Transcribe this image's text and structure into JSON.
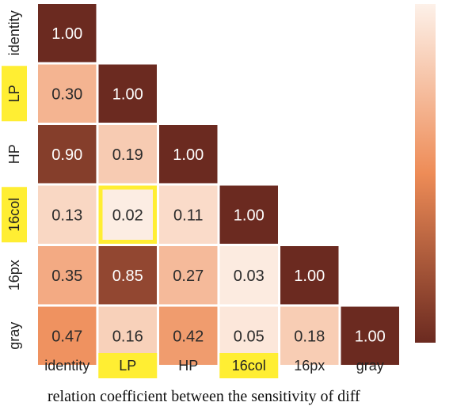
{
  "chart_data": {
    "type": "heatmap",
    "title": "",
    "xlabel": "",
    "ylabel": "",
    "labels": [
      "identity",
      "LP",
      "HP",
      "16col",
      "16px",
      "gray"
    ],
    "highlighted_labels": [
      "LP",
      "16col"
    ],
    "highlighted_cell": {
      "row": "16col",
      "col": "LP"
    },
    "matrix": [
      [
        1.0,
        null,
        null,
        null,
        null,
        null
      ],
      [
        0.3,
        1.0,
        null,
        null,
        null,
        null
      ],
      [
        0.9,
        0.19,
        1.0,
        null,
        null,
        null
      ],
      [
        0.13,
        0.02,
        0.11,
        1.0,
        null,
        null
      ],
      [
        0.35,
        0.85,
        0.27,
        0.03,
        1.0,
        null
      ],
      [
        0.47,
        0.16,
        0.42,
        0.05,
        0.18,
        1.0
      ]
    ],
    "colorbar": {
      "min": 0,
      "max": 1,
      "low_color": "#fdf1e9",
      "mid_color": "#ee8c57",
      "high_color": "#6b2a20"
    },
    "highlight_color": "#ffee33"
  },
  "caption": "relation coefficient between the sensitivity of diff"
}
